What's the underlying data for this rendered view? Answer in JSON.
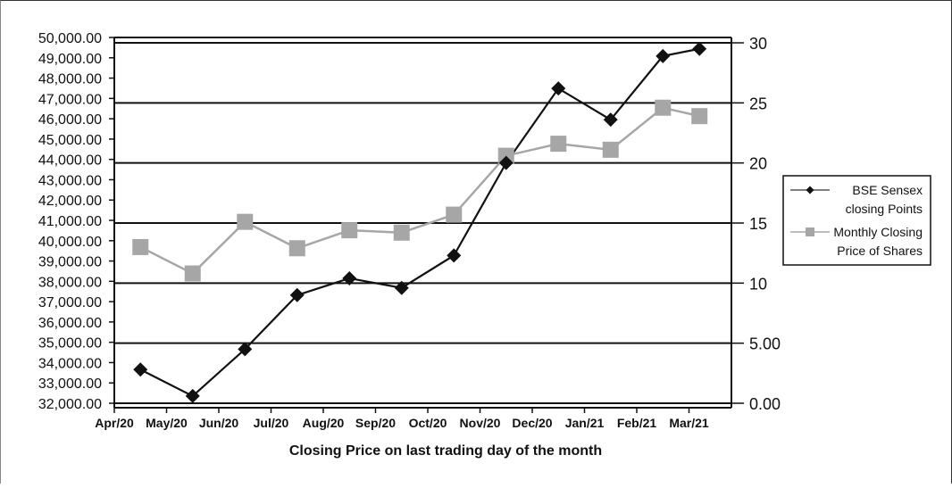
{
  "chart_data": {
    "type": "line",
    "title": "",
    "xlabel": "Closing Price on last trading day of the month",
    "ylabel_left": "",
    "ylabel_right": "",
    "x_ticks": [
      "Apr/20",
      "May/20",
      "Jun/20",
      "Jul/20",
      "Aug/20",
      "Sep/20",
      "Oct/20",
      "Nov/20",
      "Dec/20",
      "Jan/21",
      "Feb/21",
      "Mar/21"
    ],
    "y_left_ticks": [
      "32,000.00",
      "33,000.00",
      "34,000.00",
      "35,000.00",
      "36,000.00",
      "37,000.00",
      "38,000.00",
      "39,000.00",
      "40,000.00",
      "41,000.00",
      "42,000.00",
      "43,000.00",
      "44,000.00",
      "45,000.00",
      "46,000.00",
      "47,000.00",
      "48,000.00",
      "49,000.00",
      "50,000.00"
    ],
    "y_left_tick_values": [
      32000,
      33000,
      34000,
      35000,
      36000,
      37000,
      38000,
      39000,
      40000,
      41000,
      42000,
      43000,
      44000,
      45000,
      46000,
      47000,
      48000,
      49000,
      50000
    ],
    "y_right_ticks": [
      "0.00",
      "5.00",
      "10",
      "15",
      "20",
      "25",
      "30"
    ],
    "y_right_tick_values": [
      0,
      5,
      10,
      15,
      20,
      25,
      30
    ],
    "gridlines_right": [
      0,
      5,
      10,
      15,
      20,
      25,
      30
    ],
    "ylim_right": [
      0,
      30
    ],
    "series": [
      {
        "name": "BSE Sensex closing Points",
        "axis": "left",
        "marker": "diamond",
        "color": "#111111",
        "points": [
          {
            "x": 0.5,
            "y": 2.8
          },
          {
            "x": 1.5,
            "y": 0.6
          },
          {
            "x": 2.5,
            "y": 4.5
          },
          {
            "x": 3.5,
            "y": 9.0
          },
          {
            "x": 4.5,
            "y": 10.4
          },
          {
            "x": 5.5,
            "y": 9.6
          },
          {
            "x": 6.5,
            "y": 12.3
          },
          {
            "x": 7.5,
            "y": 20.0
          },
          {
            "x": 8.5,
            "y": 26.2
          },
          {
            "x": 9.5,
            "y": 23.6
          },
          {
            "x": 10.5,
            "y": 28.9
          },
          {
            "x": 11.2,
            "y": 29.5
          }
        ]
      },
      {
        "name": "Monthly Closing Price of Shares",
        "axis": "right",
        "marker": "square",
        "color": "#a6a6a6",
        "points": [
          {
            "x": 0.5,
            "y": 13.0
          },
          {
            "x": 1.5,
            "y": 10.8
          },
          {
            "x": 2.5,
            "y": 15.1
          },
          {
            "x": 3.5,
            "y": 12.9
          },
          {
            "x": 4.5,
            "y": 14.4
          },
          {
            "x": 5.5,
            "y": 14.2
          },
          {
            "x": 6.5,
            "y": 15.7
          },
          {
            "x": 7.5,
            "y": 20.6
          },
          {
            "x": 8.5,
            "y": 21.6
          },
          {
            "x": 9.5,
            "y": 21.1
          },
          {
            "x": 10.5,
            "y": 24.6
          },
          {
            "x": 11.2,
            "y": 23.9
          }
        ]
      }
    ],
    "grid": true,
    "legend_position": "right"
  }
}
